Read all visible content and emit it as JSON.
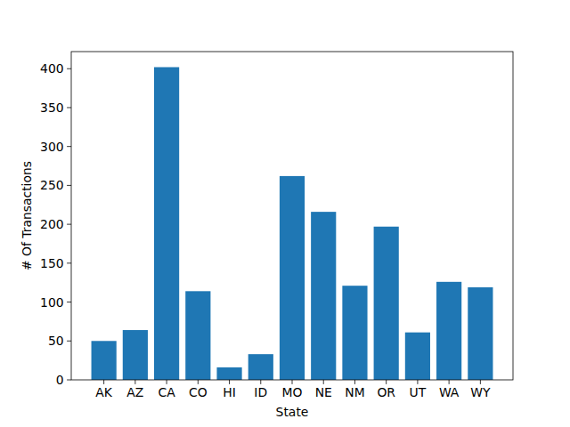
{
  "chart_data": {
    "type": "bar",
    "x_label": "State",
    "y_label": "# Of Transactions",
    "categories": [
      "AK",
      "AZ",
      "CA",
      "CO",
      "HI",
      "ID",
      "MO",
      "NE",
      "NM",
      "OR",
      "UT",
      "WA",
      "WY"
    ],
    "values": [
      50,
      64,
      402,
      114,
      16,
      33,
      262,
      216,
      121,
      197,
      61,
      126,
      119
    ],
    "color": "#1f77b4",
    "ylim": [
      0,
      422
    ],
    "yticks": [
      0,
      50,
      100,
      150,
      200,
      250,
      300,
      350,
      400
    ],
    "grid": false
  }
}
